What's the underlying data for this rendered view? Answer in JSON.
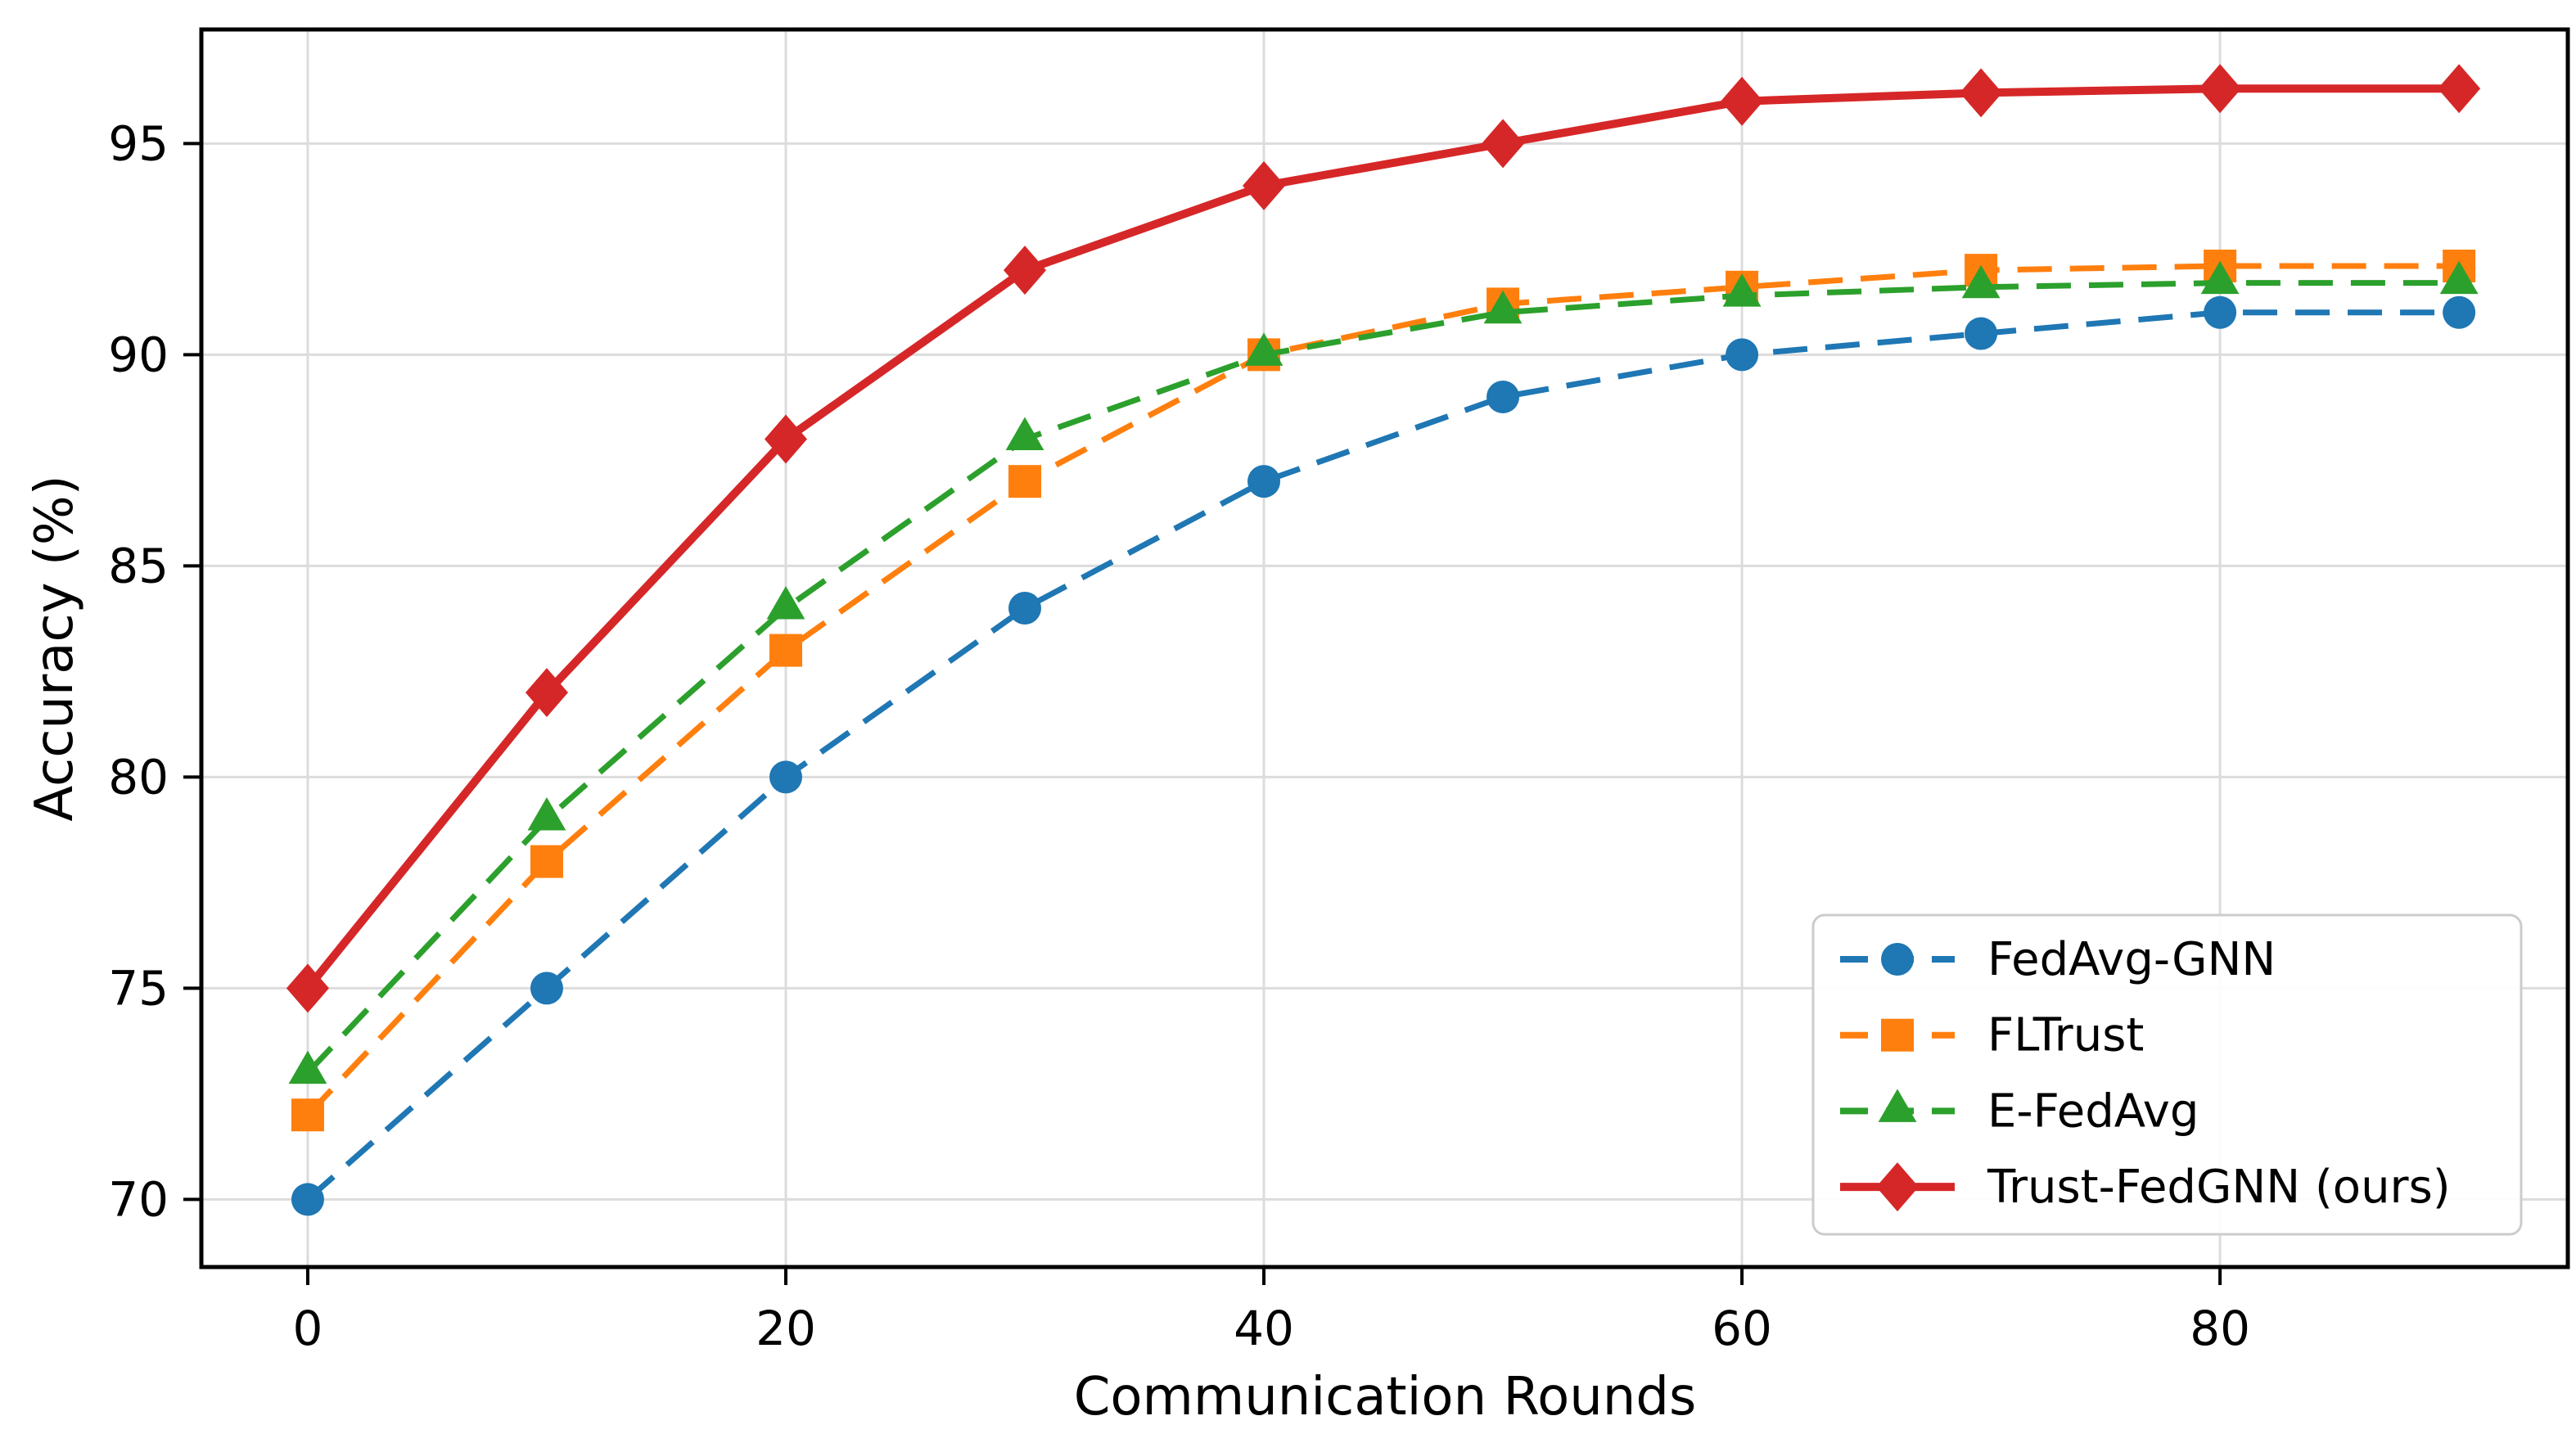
{
  "chart_data": {
    "type": "line",
    "title": "",
    "xlabel": "Communication Rounds",
    "ylabel": "Accuracy (%)",
    "x": [
      0,
      10,
      20,
      30,
      40,
      50,
      60,
      70,
      80,
      90
    ],
    "series": [
      {
        "name": "FedAvg-GNN",
        "color": "#1f77b4",
        "marker": "circle",
        "linestyle": "dashed",
        "values": [
          70,
          75,
          80,
          84,
          87,
          89,
          90,
          90.5,
          91,
          91
        ]
      },
      {
        "name": "FLTrust",
        "color": "#ff7f0e",
        "marker": "square",
        "linestyle": "dashed",
        "values": [
          72,
          78,
          83,
          87,
          90,
          91.2,
          91.6,
          92,
          92.1,
          92.1
        ]
      },
      {
        "name": "E-FedAvg",
        "color": "#2ca02c",
        "marker": "triangle",
        "linestyle": "dashed",
        "values": [
          73,
          79,
          84,
          88,
          90,
          91,
          91.4,
          91.6,
          91.7,
          91.7
        ]
      },
      {
        "name": "Trust-FedGNN (ours)",
        "color": "#d62728",
        "marker": "diamond",
        "linestyle": "solid",
        "values": [
          75,
          82,
          88,
          92,
          94,
          95,
          96,
          96.2,
          96.3,
          96.3
        ]
      }
    ],
    "xticks": [
      0,
      20,
      40,
      60,
      80
    ],
    "yticks": [
      70,
      75,
      80,
      85,
      90,
      95
    ],
    "xlim": [
      -4.45,
      94.55
    ],
    "ylim": [
      68.4,
      97.7
    ],
    "grid": true,
    "grid_color": "#dcdcdc",
    "spine_color": "#000000",
    "legend": {
      "position": "lower right",
      "border_color": "#cccccc",
      "background": "#ffffff"
    }
  }
}
